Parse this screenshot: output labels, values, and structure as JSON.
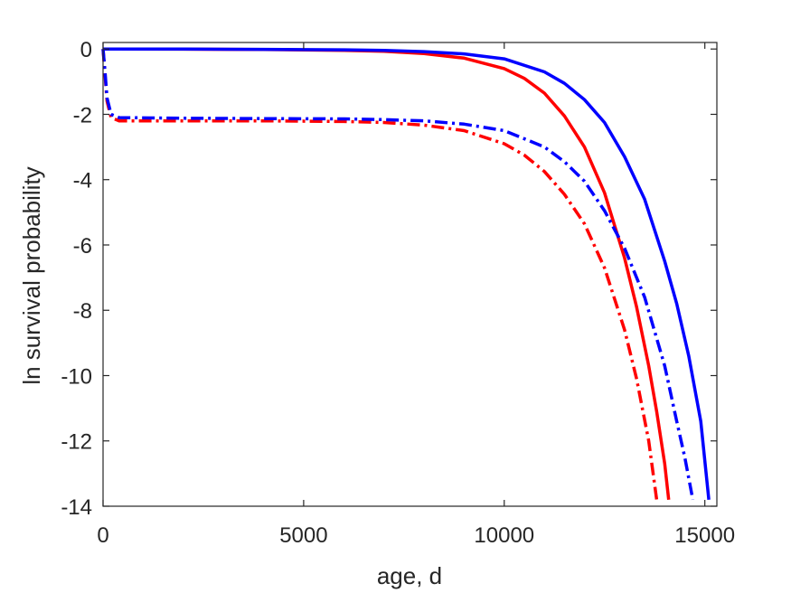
{
  "chart_data": {
    "type": "line",
    "title": "",
    "xlabel": "age, d",
    "ylabel": "ln survival probability",
    "xlim": [
      0,
      15300
    ],
    "ylim": [
      -14,
      0.2
    ],
    "xticks": [
      0,
      5000,
      10000,
      15000
    ],
    "xtick_labels": [
      "0",
      "5000",
      "10000",
      "15000"
    ],
    "yticks": [
      0,
      -2,
      -4,
      -6,
      -8,
      -10,
      -12,
      -14
    ],
    "ytick_labels": [
      "0",
      "-2",
      "-4",
      "-6",
      "-8",
      "-10",
      "-12",
      "-14"
    ],
    "grid": false,
    "legend": "none",
    "series": [
      {
        "color": "#ff0000",
        "dash": "solid",
        "x": [
          0,
          2000,
          4000,
          6000,
          7000,
          8000,
          9000,
          10000,
          10500,
          11000,
          11500,
          12000,
          12500,
          13000,
          13300,
          13600,
          13800,
          14000,
          14100
        ],
        "y": [
          0,
          -0.005,
          -0.015,
          -0.04,
          -0.07,
          -0.14,
          -0.28,
          -0.6,
          -0.9,
          -1.35,
          -2.05,
          -3.0,
          -4.4,
          -6.4,
          -7.9,
          -9.7,
          -11.1,
          -12.7,
          -13.8
        ]
      },
      {
        "color": "#0000ff",
        "dash": "solid",
        "x": [
          0,
          2000,
          4000,
          6000,
          7000,
          8000,
          9000,
          10000,
          11000,
          11500,
          12000,
          12500,
          13000,
          13500,
          14000,
          14300,
          14600,
          14900,
          15100
        ],
        "y": [
          0,
          -0.003,
          -0.01,
          -0.025,
          -0.04,
          -0.08,
          -0.15,
          -0.3,
          -0.7,
          -1.05,
          -1.55,
          -2.25,
          -3.3,
          -4.6,
          -6.5,
          -7.8,
          -9.4,
          -11.4,
          -13.8
        ]
      },
      {
        "color": "#ff0000",
        "dash": "dashdot",
        "x": [
          0,
          50,
          100,
          200,
          400,
          2000,
          4000,
          6000,
          7000,
          8000,
          9000,
          10000,
          10500,
          11000,
          11500,
          12000,
          12500,
          13000,
          13300,
          13600,
          13800
        ],
        "y": [
          0,
          -0.8,
          -1.6,
          -2.1,
          -2.2,
          -2.2,
          -2.2,
          -2.22,
          -2.25,
          -2.33,
          -2.5,
          -2.9,
          -3.25,
          -3.75,
          -4.45,
          -5.35,
          -6.7,
          -8.6,
          -10.1,
          -12.0,
          -13.8
        ]
      },
      {
        "color": "#0000ff",
        "dash": "dashdot",
        "x": [
          0,
          50,
          100,
          200,
          400,
          2000,
          4000,
          6000,
          7000,
          8000,
          9000,
          10000,
          11000,
          11500,
          12000,
          12500,
          13000,
          13500,
          14000,
          14300,
          14500,
          14700
        ],
        "y": [
          0,
          -0.7,
          -1.5,
          -2.0,
          -2.1,
          -2.12,
          -2.13,
          -2.14,
          -2.16,
          -2.2,
          -2.3,
          -2.5,
          -3.0,
          -3.45,
          -4.05,
          -4.95,
          -6.1,
          -7.6,
          -9.7,
          -11.4,
          -12.5,
          -13.8
        ]
      }
    ]
  }
}
